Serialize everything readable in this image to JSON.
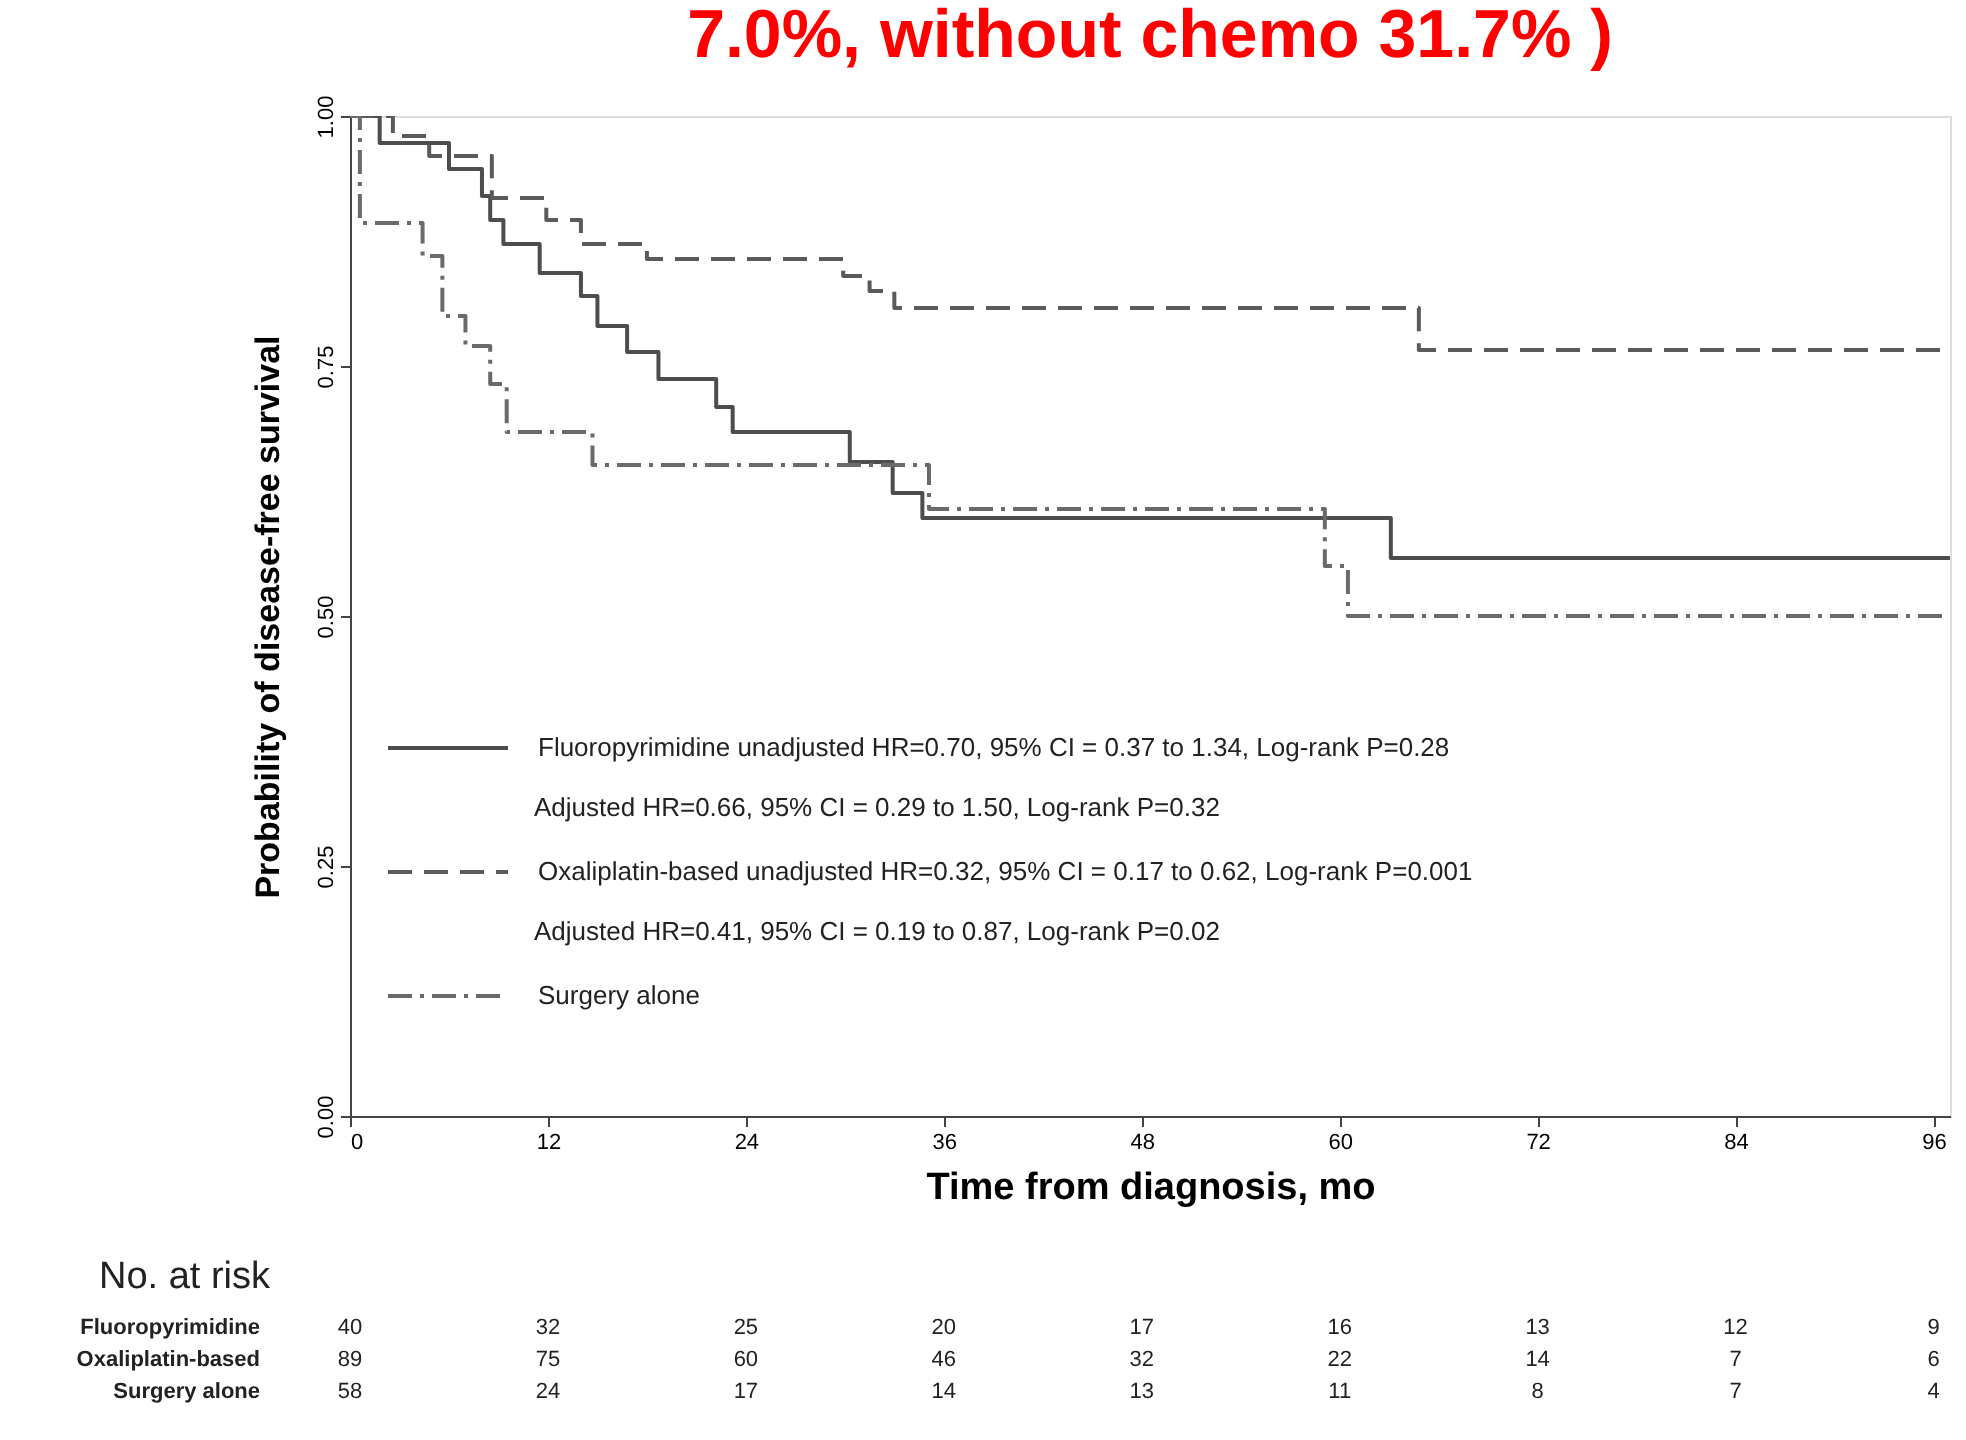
{
  "chart_data": {
    "type": "step",
    "title": "7.0%, without chemo 31.7% )",
    "xlabel": "Time from diagnosis, mo",
    "ylabel": "Probability of disease-free survival",
    "xlim": [
      0,
      97
    ],
    "xticks": [
      0,
      12,
      24,
      36,
      48,
      60,
      72,
      84,
      96
    ],
    "ylim": [
      0,
      1
    ],
    "yticks": [
      {
        "value": 0,
        "label": "0.00"
      },
      {
        "value": 0.25,
        "label": "0.25"
      },
      {
        "value": 0.5,
        "label": "0.50"
      },
      {
        "value": 0.75,
        "label": "0.75"
      },
      {
        "value": 1,
        "label": "1.00"
      }
    ],
    "grid": false,
    "legend": "bottom",
    "marker": "none",
    "series": [
      {
        "name": "Fluoropyrimidine unadjusted HR=0.70, 95% CI = 0.37 to 1.34, Log-rank P=0.28",
        "color": "#4d4d4d",
        "line_style": "solid",
        "x": [
          0,
          1.8,
          6,
          8,
          8.5,
          9.3,
          11.5,
          14,
          15,
          16.8,
          18.7,
          22.2,
          23.2,
          30.3,
          32.9,
          34.7,
          63.1,
          97
        ],
        "values": [
          1.0,
          0.973,
          0.947,
          0.92,
          0.896,
          0.872,
          0.843,
          0.82,
          0.79,
          0.764,
          0.737,
          0.709,
          0.684,
          0.654,
          0.623,
          0.598,
          0.558,
          0.558
        ]
      },
      {
        "name": "Oxaliplatin-based unadjusted HR=0.32, 95% CI = 0.17 to 0.62, Log-rank P=0.001",
        "color": "#5a5a5a",
        "line_style": "dashed",
        "x": [
          0,
          2.6,
          4.8,
          8.6,
          11.9,
          14,
          18,
          29.9,
          31.5,
          33,
          64.8,
          97
        ],
        "values": [
          1.0,
          0.98,
          0.96,
          0.918,
          0.896,
          0.872,
          0.857,
          0.84,
          0.825,
          0.808,
          0.766,
          0.766
        ]
      },
      {
        "name": "Surgery alone",
        "color": "#6a6a6a",
        "line_style": "dashdot",
        "x": [
          0,
          0.6,
          4.4,
          5.6,
          7,
          8.5,
          9.5,
          14.7,
          35.1,
          59.1,
          60.5,
          97
        ],
        "values": [
          1.0,
          0.893,
          0.86,
          0.8,
          0.77,
          0.732,
          0.684,
          0.651,
          0.607,
          0.55,
          0.5,
          0.5
        ]
      }
    ],
    "annotations": [
      "Adjusted HR=0.66, 95% CI = 0.29 to 1.50, Log-rank P=0.32",
      "Adjusted HR=0.41, 95% CI = 0.19 to 0.87, Log-rank P=0.02",
      "No. at risk",
      "Fluoropyrimidine",
      "40",
      "32",
      "25",
      "20",
      "17",
      "16",
      "13",
      "12",
      "9",
      "Oxaliplatin-based",
      "89",
      "75",
      "60",
      "46",
      "32",
      "22",
      "14",
      "7",
      "6",
      "Surgery alone",
      "58",
      "24",
      "17",
      "14",
      "13",
      "11",
      "8",
      "7",
      "4"
    ]
  }
}
